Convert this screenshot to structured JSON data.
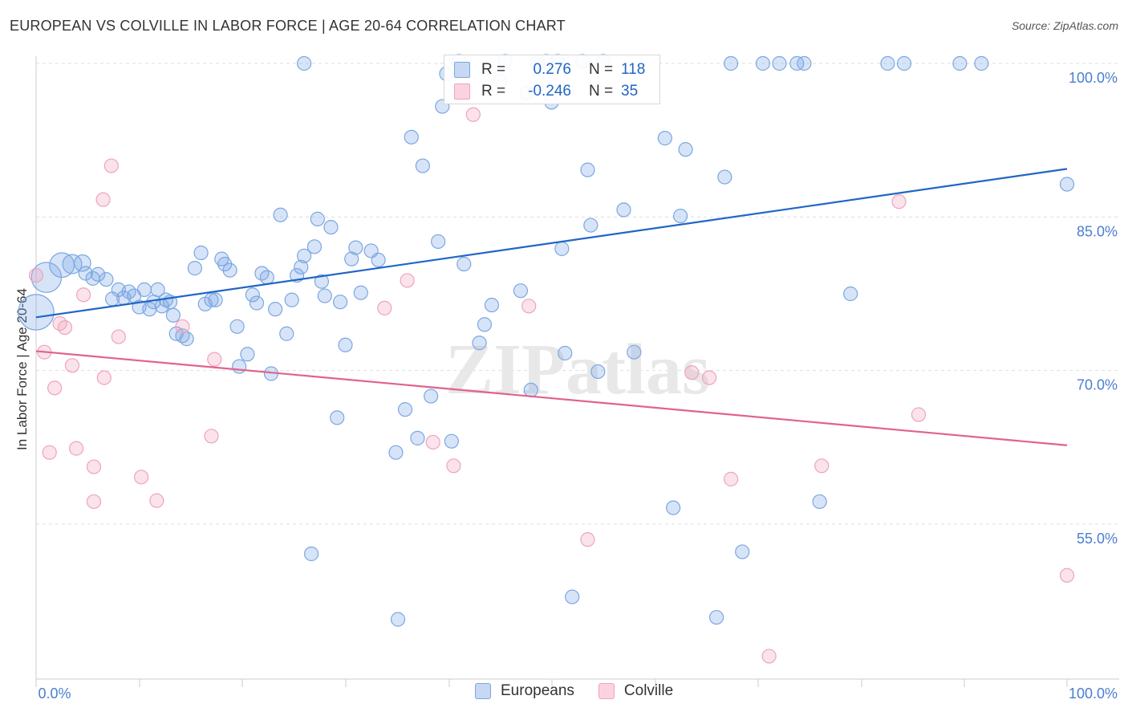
{
  "title": "EUROPEAN VS COLVILLE IN LABOR FORCE | AGE 20-64 CORRELATION CHART",
  "source": "Source: ZipAtlas.com",
  "watermark": "ZIPatlas",
  "legend": {
    "rows": [
      {
        "r_label": "R =",
        "r_value": "0.276",
        "n_label": "N =",
        "n_value": "118",
        "color": "#7ba7e3"
      },
      {
        "r_label": "R =",
        "r_value": "-0.246",
        "n_label": "N =",
        "n_value": "35",
        "color": "#f0a3bc"
      }
    ]
  },
  "bottom_legend": [
    "Europeans",
    "Colville"
  ],
  "chart_data": {
    "type": "scatter",
    "title": "EUROPEAN VS COLVILLE IN LABOR FORCE | AGE 20-64 CORRELATION CHART",
    "xlabel": "",
    "ylabel": "In Labor Force | Age 20-64",
    "xlim": [
      0,
      100
    ],
    "ylim": [
      41,
      102
    ],
    "x_tick_labels": [
      "0.0%",
      "100.0%"
    ],
    "y_ticks": [
      55,
      70,
      85,
      100
    ],
    "y_tick_labels": [
      "55.0%",
      "70.0%",
      "85.0%",
      "100.0%"
    ],
    "grid": true,
    "legend_position": "top-center",
    "series": [
      {
        "name": "Europeans",
        "color": "#7ba7e3",
        "trend": {
          "x": [
            0,
            100
          ],
          "y": [
            75.2,
            89.7
          ]
        },
        "points": [
          [
            0,
            75.7,
            26
          ],
          [
            1,
            79.1,
            22
          ],
          [
            2.5,
            80.3,
            18
          ],
          [
            3.5,
            80.4,
            14
          ],
          [
            4.5,
            80.5,
            12
          ],
          [
            4.8,
            79.5,
            10
          ],
          [
            5.5,
            79,
            10
          ],
          [
            6.0,
            79.4,
            10
          ],
          [
            6.8,
            78.9,
            10
          ],
          [
            7.4,
            77,
            10
          ],
          [
            8.0,
            77.9,
            10
          ],
          [
            8.5,
            77.1,
            10
          ],
          [
            9.0,
            77.7,
            10
          ],
          [
            9.5,
            77.3,
            10
          ],
          [
            10,
            76.2,
            10
          ],
          [
            10.5,
            77.9,
            10
          ],
          [
            11,
            76.0,
            10
          ],
          [
            11.4,
            76.7,
            10
          ],
          [
            11.8,
            77.9,
            10
          ],
          [
            12.2,
            76.3,
            10
          ],
          [
            12.6,
            76.9,
            10
          ],
          [
            13,
            76.7,
            10
          ],
          [
            13.3,
            75.4,
            10
          ],
          [
            13.6,
            73.6,
            10
          ],
          [
            14.2,
            73.4,
            10
          ],
          [
            14.6,
            73.1,
            10
          ],
          [
            15.4,
            80.0,
            10
          ],
          [
            16,
            81.5,
            10
          ],
          [
            16.4,
            76.5,
            10
          ],
          [
            17,
            76.9,
            10
          ],
          [
            17.4,
            76.9,
            10
          ],
          [
            18.0,
            80.9,
            10
          ],
          [
            18.3,
            80.4,
            10
          ],
          [
            18.8,
            79.8,
            10
          ],
          [
            19.5,
            74.3,
            10
          ],
          [
            19.7,
            70.4,
            10
          ],
          [
            20.5,
            71.6,
            10
          ],
          [
            21.0,
            77.4,
            10
          ],
          [
            21.4,
            76.6,
            10
          ],
          [
            21.9,
            79.5,
            10
          ],
          [
            22.4,
            79.1,
            10
          ],
          [
            22.8,
            69.7,
            10
          ],
          [
            23.2,
            76.0,
            10
          ],
          [
            23.7,
            85.2,
            10
          ],
          [
            24.3,
            73.6,
            10
          ],
          [
            24.8,
            76.9,
            10
          ],
          [
            25.3,
            79.3,
            10
          ],
          [
            25.7,
            80.1,
            10
          ],
          [
            26.0,
            81.2,
            10
          ],
          [
            27.0,
            82.1,
            10
          ],
          [
            27.3,
            84.8,
            10
          ],
          [
            27.7,
            78.7,
            10
          ],
          [
            28.0,
            77.3,
            10
          ],
          [
            28.6,
            84.0,
            10
          ],
          [
            29.5,
            76.7,
            10
          ],
          [
            30.6,
            80.9,
            10
          ],
          [
            31.0,
            82.0,
            10
          ],
          [
            31.5,
            77.6,
            10
          ],
          [
            32.5,
            81.7,
            10
          ],
          [
            33.2,
            80.8,
            10
          ],
          [
            29.2,
            65.4,
            10
          ],
          [
            34.9,
            62.0,
            10
          ],
          [
            35.8,
            66.2,
            10
          ],
          [
            36.4,
            92.8,
            10
          ],
          [
            37.5,
            90.0,
            10
          ],
          [
            37.0,
            63.4,
            10
          ],
          [
            38.3,
            67.5,
            10
          ],
          [
            39.0,
            82.6,
            10
          ],
          [
            39.4,
            95.8,
            10
          ],
          [
            39.8,
            99.0,
            10
          ],
          [
            40.3,
            63.1,
            10
          ],
          [
            41.5,
            80.4,
            10
          ],
          [
            41.0,
            100.2,
            10
          ],
          [
            43.0,
            72.7,
            10
          ],
          [
            43.5,
            74.5,
            10
          ],
          [
            44.2,
            76.4,
            10
          ],
          [
            45.0,
            98.3,
            10
          ],
          [
            45.5,
            100.2,
            10
          ],
          [
            47.6,
            97.1,
            10
          ],
          [
            48.0,
            68.1,
            10
          ],
          [
            50.0,
            96.2,
            10
          ],
          [
            50.6,
            100.2,
            10
          ],
          [
            51.0,
            81.9,
            10
          ],
          [
            51.3,
            71.7,
            10
          ],
          [
            53,
            100.2,
            10
          ],
          [
            53.5,
            89.6,
            10
          ],
          [
            53.8,
            84.2,
            10
          ],
          [
            54.5,
            69.9,
            10
          ],
          [
            55.0,
            100.2,
            10
          ],
          [
            57.0,
            85.7,
            10
          ],
          [
            58.0,
            71.8,
            10
          ],
          [
            61.0,
            92.7,
            10
          ],
          [
            61.8,
            56.6,
            10
          ],
          [
            62.5,
            85.1,
            10
          ],
          [
            63.0,
            91.6,
            10
          ],
          [
            52.0,
            47.9,
            10
          ],
          [
            66.8,
            88.9,
            10
          ],
          [
            67.4,
            100.0,
            10
          ],
          [
            70.5,
            100.0,
            10
          ],
          [
            72.1,
            100.0,
            10
          ],
          [
            73.8,
            100.0,
            10
          ],
          [
            74.5,
            100.0,
            10
          ],
          [
            76.0,
            57.2,
            10
          ],
          [
            79.0,
            77.5,
            10
          ],
          [
            82.6,
            100.0,
            10
          ],
          [
            84.2,
            100.0,
            10
          ],
          [
            89.6,
            100.0,
            10
          ],
          [
            91.7,
            100.0,
            10
          ],
          [
            100,
            88.2,
            10
          ],
          [
            26.7,
            52.1,
            10
          ],
          [
            35.1,
            45.7,
            10
          ],
          [
            66.0,
            45.9,
            10
          ],
          [
            68.5,
            52.3,
            10
          ],
          [
            47.0,
            77.8,
            10
          ],
          [
            30.0,
            72.5,
            10
          ],
          [
            49.5,
            100.2,
            10
          ],
          [
            26.0,
            100.0,
            10
          ],
          [
            48.6,
            100.0,
            10
          ]
        ]
      },
      {
        "name": "Colville",
        "color": "#f0a3bc",
        "trend": {
          "x": [
            0,
            100
          ],
          "y": [
            71.9,
            62.7
          ]
        },
        "points": [
          [
            0,
            79.3,
            10
          ],
          [
            0.8,
            71.8,
            10
          ],
          [
            1.3,
            62.0,
            10
          ],
          [
            1.8,
            68.3,
            10
          ],
          [
            2.3,
            74.6,
            10
          ],
          [
            2.8,
            74.2,
            10
          ],
          [
            3.5,
            70.5,
            10
          ],
          [
            3.9,
            62.4,
            10
          ],
          [
            4.6,
            77.4,
            10
          ],
          [
            5.6,
            60.6,
            10
          ],
          [
            5.6,
            57.2,
            10
          ],
          [
            6.5,
            86.7,
            10
          ],
          [
            6.6,
            69.3,
            10
          ],
          [
            7.3,
            90.0,
            10
          ],
          [
            8.0,
            73.3,
            10
          ],
          [
            10.2,
            59.6,
            10
          ],
          [
            11.7,
            57.3,
            10
          ],
          [
            14.2,
            74.3,
            10
          ],
          [
            17.0,
            63.6,
            10
          ],
          [
            17.3,
            71.1,
            10
          ],
          [
            33.8,
            76.1,
            10
          ],
          [
            36.0,
            78.8,
            10
          ],
          [
            40.5,
            60.7,
            10
          ],
          [
            42.4,
            95.0,
            10
          ],
          [
            47.8,
            76.3,
            10
          ],
          [
            53.5,
            53.5,
            10
          ],
          [
            63.6,
            69.8,
            10
          ],
          [
            65.3,
            69.3,
            10
          ],
          [
            67.4,
            59.4,
            10
          ],
          [
            71.1,
            42.1,
            10
          ],
          [
            76.2,
            60.7,
            10
          ],
          [
            83.7,
            86.5,
            10
          ],
          [
            85.6,
            65.7,
            10
          ],
          [
            100,
            50.0,
            10
          ],
          [
            38.5,
            63.0,
            10
          ]
        ]
      }
    ]
  }
}
